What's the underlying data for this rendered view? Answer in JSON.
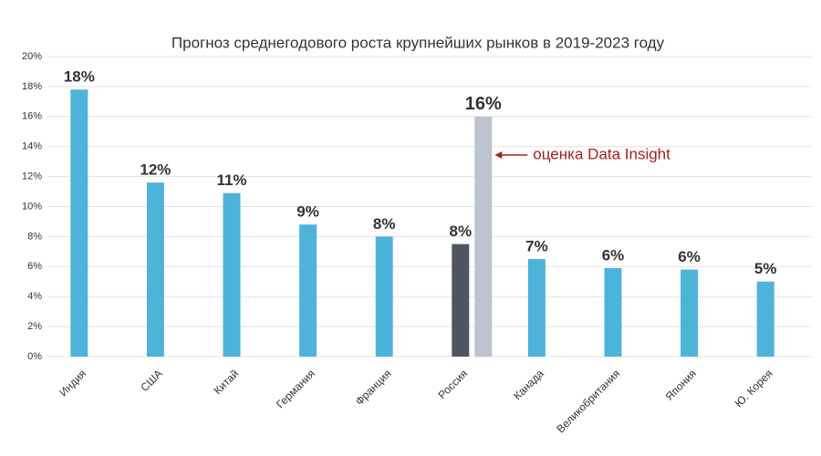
{
  "chart_data": {
    "type": "bar",
    "title": "Прогноз среднегодового роста крупнейших рынков в 2019-2023 году",
    "categories": [
      "Индия",
      "США",
      "Китай",
      "Германия",
      "Франция",
      "Россия",
      "Канада",
      "Великобритания",
      "Япония",
      "Ю. Корея"
    ],
    "series": [
      {
        "colors": [
          "#4eb3d9",
          "#4eb3d9",
          "#4eb3d9",
          "#4eb3d9",
          "#4eb3d9",
          "#4d5660",
          "#4eb3d9",
          "#4eb3d9",
          "#4eb3d9",
          "#4eb3d9"
        ],
        "values": [
          17.8,
          11.6,
          10.9,
          8.8,
          8.0,
          7.5,
          6.5,
          5.9,
          5.8,
          5.0
        ],
        "value_labels": [
          "18%",
          "12%",
          "11%",
          "9%",
          "8%",
          "8%",
          "7%",
          "6%",
          "6%",
          "5%"
        ]
      },
      {
        "color": "#bcc3cf",
        "values": [
          null,
          null,
          null,
          null,
          null,
          16.0,
          null,
          null,
          null,
          null
        ],
        "value_labels": [
          null,
          null,
          null,
          null,
          null,
          "16%",
          null,
          null,
          null,
          null
        ]
      }
    ],
    "annotation": {
      "text": "оценка Data Insight",
      "color": "#a02020",
      "category": 5,
      "series": 1
    },
    "ylim": [
      0,
      20
    ],
    "yticks": [
      {
        "value": 0,
        "label": "0%"
      },
      {
        "value": 2,
        "label": "2%"
      },
      {
        "value": 4,
        "label": "4%"
      },
      {
        "value": 6,
        "label": "6%"
      },
      {
        "value": 8,
        "label": "8%"
      },
      {
        "value": 10,
        "label": "10%"
      },
      {
        "value": 12,
        "label": "12%"
      },
      {
        "value": 14,
        "label": "14%"
      },
      {
        "value": 16,
        "label": "16%"
      },
      {
        "value": 18,
        "label": "18%"
      },
      {
        "value": 20,
        "label": "20%"
      }
    ],
    "grid": true
  }
}
